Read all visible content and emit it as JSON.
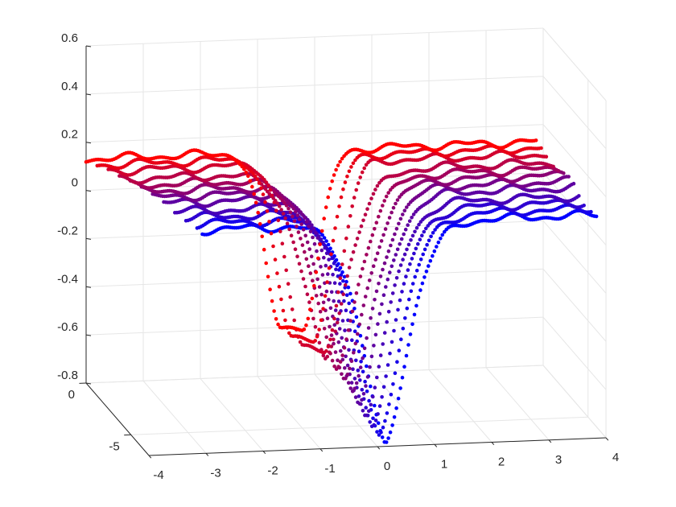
{
  "chart_data": {
    "type": "scatter",
    "subtype": "3d-point-cloud",
    "title": "",
    "xlabel": "",
    "ylabel": "",
    "zlabel": "",
    "grid": true,
    "legend": "none",
    "xlim": [
      -4,
      4
    ],
    "ylim": [
      -7,
      0
    ],
    "zlim": [
      -0.8,
      0.6
    ],
    "x_ticks": [
      "-4",
      "-3",
      "-2",
      "-1",
      "0",
      "1",
      "2",
      "3",
      "4"
    ],
    "y_ticks": [
      "0",
      "-5"
    ],
    "z_ticks": [
      "0.6",
      "0.4",
      "0.2",
      "0",
      "-0.2",
      "-0.4",
      "-0.6",
      "-0.8"
    ],
    "colormap": {
      "start": "#ff0000",
      "end": "#0000ff",
      "direction": "front to back along y"
    },
    "series": [
      {
        "y": 0.0,
        "x_start": -4.0,
        "x_end": 3.9,
        "baseline": 0.13,
        "dip_center": -0.4,
        "dip_min": -0.6,
        "dip_shape": "flat-bottom"
      },
      {
        "y": -0.6,
        "x_start": -3.9,
        "x_end": 3.9,
        "baseline": 0.13,
        "dip_center": -0.3,
        "dip_min": -0.62,
        "dip_shape": "flat-bottom"
      },
      {
        "y": -1.2,
        "x_start": -3.8,
        "x_end": 3.9,
        "baseline": 0.13,
        "dip_center": -0.2,
        "dip_min": -0.64,
        "dip_shape": "flat-bottom"
      },
      {
        "y": -1.8,
        "x_start": -3.7,
        "x_end": 3.9,
        "baseline": 0.12,
        "dip_center": -0.1,
        "dip_min": -0.66,
        "dip_shape": "v"
      },
      {
        "y": -2.4,
        "x_start": -3.6,
        "x_end": 3.9,
        "baseline": 0.12,
        "dip_center": 0.0,
        "dip_min": -0.68,
        "dip_shape": "v"
      },
      {
        "y": -3.0,
        "x_start": -3.5,
        "x_end": 3.9,
        "baseline": 0.12,
        "dip_center": 0.05,
        "dip_min": -0.7,
        "dip_shape": "v"
      },
      {
        "y": -3.6,
        "x_start": -3.4,
        "x_end": 3.9,
        "baseline": 0.12,
        "dip_center": 0.1,
        "dip_min": -0.72,
        "dip_shape": "v"
      },
      {
        "y": -4.2,
        "x_start": -3.3,
        "x_end": 3.9,
        "baseline": 0.12,
        "dip_center": 0.12,
        "dip_min": -0.74,
        "dip_shape": "v"
      },
      {
        "y": -4.8,
        "x_start": -3.2,
        "x_end": 3.9,
        "baseline": 0.11,
        "dip_center": 0.14,
        "dip_min": -0.76,
        "dip_shape": "v"
      },
      {
        "y": -5.4,
        "x_start": -3.1,
        "x_end": 3.9,
        "baseline": 0.11,
        "dip_center": 0.16,
        "dip_min": -0.78,
        "dip_shape": "v"
      },
      {
        "y": -6.0,
        "x_start": -3.0,
        "x_end": 3.9,
        "baseline": 0.11,
        "dip_center": 0.18,
        "dip_min": -0.8,
        "dip_shape": "v"
      },
      {
        "y": -6.6,
        "x_start": -3.0,
        "x_end": 3.9,
        "baseline": 0.11,
        "dip_center": 0.2,
        "dip_min": -0.82,
        "dip_shape": "v"
      }
    ]
  }
}
